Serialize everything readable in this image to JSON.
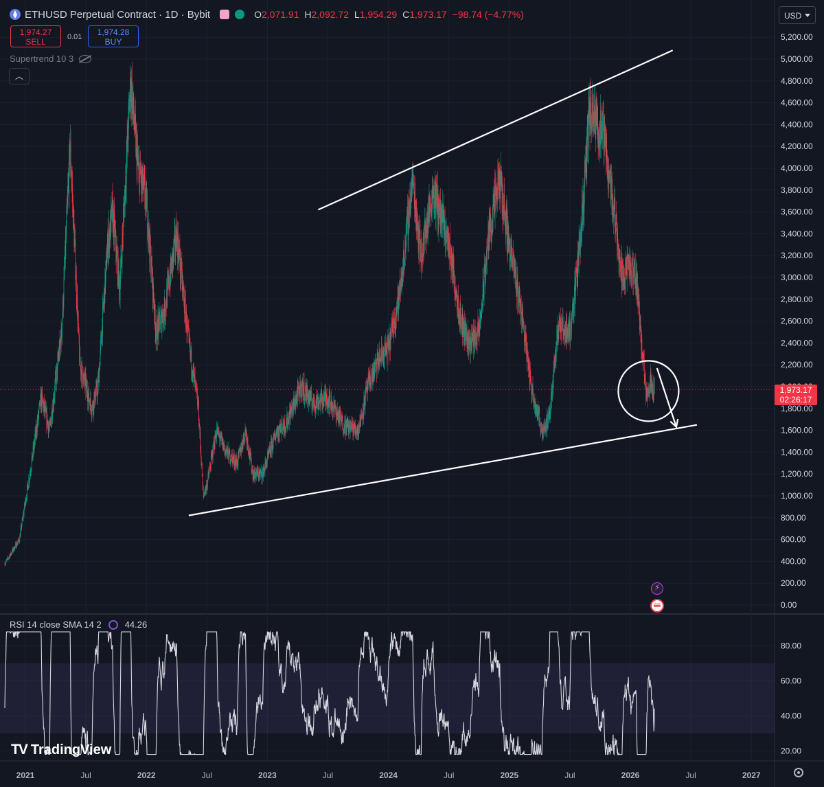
{
  "header": {
    "symbol": "ETHUSD Perpetual Contract · 1D · Bybit",
    "ohlc": [
      {
        "k": "O",
        "v": "2,071.91"
      },
      {
        "k": "H",
        "v": "2,092.72"
      },
      {
        "k": "L",
        "v": "1,954.29"
      },
      {
        "k": "C",
        "v": "1,973.17"
      }
    ],
    "change": "−98.74 (−4.77%)"
  },
  "trade": {
    "sell_price": "1,974.27",
    "sell_label": "SELL",
    "buy_price": "1,974.28",
    "buy_label": "BUY",
    "spread": "0.01"
  },
  "indicator": "Supertrend 10 3",
  "currency": "USD",
  "last_price": {
    "value": "1,973.17",
    "countdown": "02:26:17"
  },
  "rsi": {
    "label": "RSI 14 close SMA 14 2",
    "value": "44.26"
  },
  "brand": "TradingView",
  "colors": {
    "up": "#089981",
    "down": "#f23645",
    "rsi": "#d8d8e0",
    "bg": "#131722"
  },
  "chart_data": [
    {
      "type": "candlestick",
      "title": "ETHUSD Perpetual Contract · 1D · Bybit",
      "xlabel": "",
      "ylabel": "",
      "ylim": [
        0,
        5200
      ],
      "y_ticks": [
        0,
        200,
        400,
        600,
        800,
        1000,
        1200,
        1400,
        1600,
        1800,
        2000,
        2200,
        2400,
        2600,
        2800,
        3000,
        3200,
        3400,
        3600,
        3800,
        4000,
        4200,
        4400,
        4600,
        4800,
        5000,
        5200
      ],
      "y_tick_labels": [
        "0.00",
        "200.00",
        "400.00",
        "600.00",
        "800.00",
        "1,000.00",
        "1,200.00",
        "1,400.00",
        "1,600.00",
        "1,800.00",
        "2,000.00",
        "2,200.00",
        "2,400.00",
        "2,600.00",
        "2,800.00",
        "3,000.00",
        "3,200.00",
        "3,400.00",
        "3,600.00",
        "3,800.00",
        "4,000.00",
        "4,200.00",
        "4,400.00",
        "4,600.00",
        "4,800.00",
        "5,000.00",
        "5,200.00"
      ],
      "x_ticks": [
        {
          "t": 2021.0,
          "label": "2021"
        },
        {
          "t": 2021.5,
          "label": "Jul"
        },
        {
          "t": 2022.0,
          "label": "2022"
        },
        {
          "t": 2022.5,
          "label": "Jul"
        },
        {
          "t": 2023.0,
          "label": "2023"
        },
        {
          "t": 2023.5,
          "label": "Jul"
        },
        {
          "t": 2024.0,
          "label": "2024"
        },
        {
          "t": 2024.5,
          "label": "Jul"
        },
        {
          "t": 2025.0,
          "label": "2025"
        },
        {
          "t": 2025.5,
          "label": "Jul"
        },
        {
          "t": 2026.0,
          "label": "2026"
        },
        {
          "t": 2026.5,
          "label": "Jul"
        },
        {
          "t": 2027.0,
          "label": "2027"
        }
      ],
      "price_path": [
        [
          2020.83,
          380
        ],
        [
          2020.95,
          600
        ],
        [
          2021.05,
          1300
        ],
        [
          2021.13,
          1900
        ],
        [
          2021.2,
          1600
        ],
        [
          2021.3,
          2500
        ],
        [
          2021.37,
          4200
        ],
        [
          2021.45,
          2200
        ],
        [
          2021.55,
          1800
        ],
        [
          2021.6,
          2000
        ],
        [
          2021.68,
          3300
        ],
        [
          2021.72,
          3600
        ],
        [
          2021.78,
          2900
        ],
        [
          2021.87,
          4800
        ],
        [
          2021.93,
          4000
        ],
        [
          2022.0,
          3700
        ],
        [
          2022.08,
          2500
        ],
        [
          2022.15,
          2700
        ],
        [
          2022.25,
          3400
        ],
        [
          2022.35,
          2400
        ],
        [
          2022.43,
          1800
        ],
        [
          2022.47,
          1000
        ],
        [
          2022.5,
          1100
        ],
        [
          2022.58,
          1600
        ],
        [
          2022.66,
          1400
        ],
        [
          2022.75,
          1300
        ],
        [
          2022.82,
          1600
        ],
        [
          2022.88,
          1200
        ],
        [
          2022.96,
          1200
        ],
        [
          2023.08,
          1600
        ],
        [
          2023.15,
          1650
        ],
        [
          2023.28,
          2000
        ],
        [
          2023.38,
          1850
        ],
        [
          2023.5,
          1900
        ],
        [
          2023.63,
          1650
        ],
        [
          2023.75,
          1600
        ],
        [
          2023.83,
          2000
        ],
        [
          2023.92,
          2250
        ],
        [
          2024.0,
          2350
        ],
        [
          2024.1,
          2900
        ],
        [
          2024.2,
          3900
        ],
        [
          2024.27,
          3200
        ],
        [
          2024.37,
          3800
        ],
        [
          2024.45,
          3500
        ],
        [
          2024.5,
          3300
        ],
        [
          2024.6,
          2600
        ],
        [
          2024.67,
          2400
        ],
        [
          2024.75,
          2500
        ],
        [
          2024.83,
          3400
        ],
        [
          2024.92,
          3900
        ],
        [
          2025.0,
          3300
        ],
        [
          2025.1,
          2700
        ],
        [
          2025.18,
          2000
        ],
        [
          2025.27,
          1600
        ],
        [
          2025.33,
          1700
        ],
        [
          2025.4,
          2550
        ],
        [
          2025.5,
          2500
        ],
        [
          2025.55,
          2950
        ],
        [
          2025.62,
          3800
        ],
        [
          2025.66,
          4500
        ],
        [
          2025.72,
          4400
        ],
        [
          2025.78,
          4300
        ],
        [
          2025.83,
          3900
        ],
        [
          2025.88,
          3500
        ],
        [
          2025.93,
          3000
        ],
        [
          2025.97,
          3100
        ],
        [
          2026.05,
          3000
        ],
        [
          2026.1,
          2300
        ],
        [
          2026.13,
          1950
        ],
        [
          2026.17,
          2050
        ],
        [
          2026.2,
          1973
        ]
      ],
      "trendlines": [
        {
          "from": [
            2023.42,
            3620
          ],
          "to": [
            2026.35,
            5080
          ]
        },
        {
          "from": [
            2022.35,
            820
          ],
          "to": [
            2026.55,
            1650
          ]
        }
      ],
      "annotations": [
        {
          "type": "circle",
          "at": [
            2026.15,
            1960
          ]
        },
        {
          "type": "arrow",
          "from": [
            2026.22,
            2170
          ],
          "to": [
            2026.38,
            1630
          ]
        }
      ],
      "last_price": 1973.17
    },
    {
      "type": "line",
      "title": "RSI 14 close SMA 14 2",
      "xlabel": "",
      "ylabel": "",
      "ylim": [
        15,
        90
      ],
      "y_ticks": [
        20,
        40,
        60,
        80
      ],
      "y_tick_labels": [
        "20.00",
        "40.00",
        "60.00",
        "80.00"
      ],
      "band": [
        30,
        70
      ],
      "last_value": 44.26
    }
  ]
}
